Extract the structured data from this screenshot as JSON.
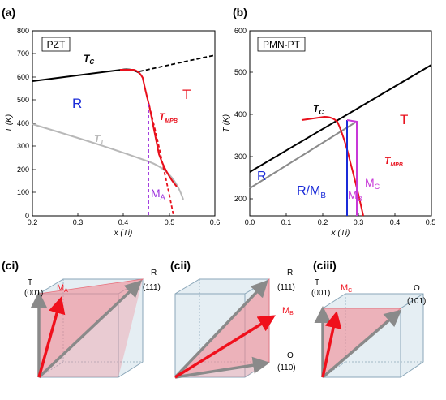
{
  "panels": {
    "a": {
      "label": "(a)",
      "box_title": "PZT",
      "ylabel": "T (K)",
      "xlabel": "x (Ti)",
      "xticks": [
        "0.2",
        "0.3",
        "0.4",
        "0.5",
        "0.6"
      ],
      "yticks": [
        "0",
        "100",
        "200",
        "300",
        "400",
        "500",
        "600",
        "700",
        "800"
      ],
      "phase_R": "R",
      "phase_T": "T",
      "tc": "T",
      "tc_sub": "C",
      "tt": "T",
      "tt_sub": "T",
      "tmpb": "T",
      "tmpb_sub": "MPB",
      "ma": "M",
      "ma_sub": "A"
    },
    "b": {
      "label": "(b)",
      "box_title": "PMN-PT",
      "ylabel": "T (K)",
      "xlabel": "x (Ti)",
      "xticks": [
        "0.0",
        "0.1",
        "0.2",
        "0.3",
        "0.4",
        "0.5"
      ],
      "yticks": [
        "200",
        "300",
        "400",
        "500",
        "600"
      ],
      "phase_R": "R",
      "phase_RMB": "R/M",
      "phase_RMB_sub": "B",
      "phase_T": "T",
      "tc": "T",
      "tc_sub": "C",
      "tmpb": "T",
      "tmpb_sub": "MPB",
      "mb": "M",
      "mb_sub": "B",
      "mc": "M",
      "mc_sub": "C"
    },
    "ci": {
      "label": "(ci)",
      "t_label": "T",
      "t_dir": "(001)",
      "m_label": "M",
      "m_sub": "A",
      "r_label": "R",
      "r_dir": "(111)"
    },
    "cii": {
      "label": "(cii)",
      "r_label": "R",
      "r_dir": "(111)",
      "m_label": "M",
      "m_sub": "B",
      "o_label": "O",
      "o_dir": "(110)"
    },
    "ciii": {
      "label": "(ciii)",
      "t_label": "T",
      "t_dir": "(001)",
      "m_label": "M",
      "m_sub": "C",
      "o_label": "O",
      "o_dir": "(101)"
    }
  },
  "colors": {
    "tc_line": "#000000",
    "tmpb_line": "#e8101c",
    "tt_line": "#b8b8b8",
    "ma_line": "#9a2bdc",
    "mb_line": "#1a2bd8",
    "mc_line": "#c838d8",
    "r_text": "#1a2bd8",
    "t_text": "#e8101c",
    "cube_face": "#cfe0ea",
    "cube_edge": "#8aa6b8",
    "plane_fill": "#f08a94",
    "arrow_red": "#f0101c",
    "arrow_gray": "#8a8a8a"
  }
}
